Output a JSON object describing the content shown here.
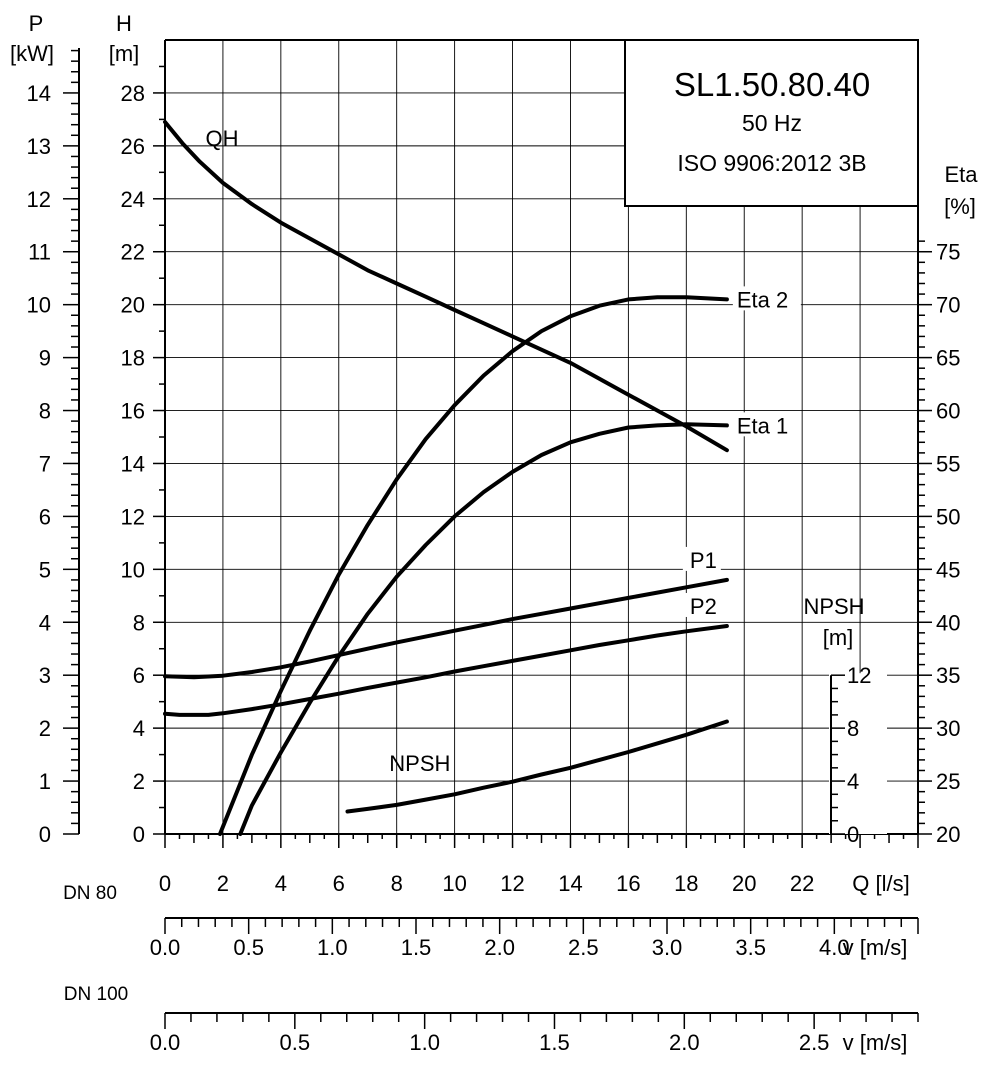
{
  "chart_data": {
    "type": "line",
    "title": "SL1.50.80.40",
    "subtitle_lines": [
      "50 Hz",
      "ISO 9906:2012 3B"
    ],
    "x_axis": {
      "label": "Q [l/s]",
      "range": [
        0,
        26
      ],
      "ticks": [
        "0",
        "2",
        "4",
        "6",
        "8",
        "10",
        "12",
        "14",
        "16",
        "18",
        "20",
        "22"
      ]
    },
    "h_axis": {
      "label_top": "H",
      "label_unit": "[m]",
      "range": [
        0,
        30
      ],
      "ticks": [
        "0",
        "2",
        "4",
        "6",
        "8",
        "10",
        "12",
        "14",
        "16",
        "18",
        "20",
        "22",
        "24",
        "26",
        "28"
      ]
    },
    "p_axis": {
      "label_top": "P",
      "label_unit": "[kW]",
      "range": [
        0,
        15
      ],
      "ticks": [
        "0",
        "1",
        "2",
        "3",
        "4",
        "5",
        "6",
        "7",
        "8",
        "9",
        "10",
        "11",
        "12",
        "13",
        "14"
      ]
    },
    "eta_axis": {
      "label_top": "Eta",
      "label_unit": "[%]",
      "range": [
        20,
        75
      ],
      "ticks": [
        "20",
        "25",
        "30",
        "35",
        "40",
        "45",
        "50",
        "55",
        "60",
        "65",
        "70",
        "75"
      ]
    },
    "npsh_axis": {
      "label_top": "NPSH",
      "label_unit": "[m]",
      "range": [
        0,
        12
      ],
      "ticks": [
        "0",
        "4",
        "8",
        "12"
      ]
    },
    "velocity_scales": [
      {
        "name": "DN 80",
        "label": "v [m/s]",
        "ticks": [
          "0.0",
          "0.5",
          "1.0",
          "1.5",
          "2.0",
          "2.5",
          "3.0",
          "3.5",
          "4.0"
        ],
        "tick_step": 0.5,
        "minor_per_major": 5,
        "v_max": 4.5
      },
      {
        "name": "DN 100",
        "label": "v [m/s]",
        "ticks": [
          "0.0",
          "0.5",
          "1.0",
          "1.5",
          "2.0",
          "2.5"
        ],
        "tick_step": 0.5,
        "minor_per_major": 5,
        "v_max": 2.9
      }
    ],
    "series": [
      {
        "name": "QH",
        "axis": "h",
        "x": [
          0,
          0.6,
          1.2,
          2,
          3,
          4,
          5,
          6,
          7,
          8,
          9,
          10,
          11,
          12,
          13,
          14,
          15,
          16,
          17,
          18,
          19.4
        ],
        "y": [
          26.9,
          26.1,
          25.4,
          24.6,
          23.8,
          23.1,
          22.5,
          21.9,
          21.3,
          20.8,
          20.3,
          19.8,
          19.3,
          18.8,
          18.3,
          17.8,
          17.2,
          16.6,
          16.0,
          15.4,
          14.5
        ]
      },
      {
        "name": "Eta 2",
        "axis": "eta",
        "x": [
          1.9,
          3,
          4,
          5,
          6,
          7,
          8,
          9,
          10,
          11,
          12,
          13,
          14,
          15,
          16,
          17,
          18,
          19.4
        ],
        "y": [
          20,
          27.5,
          33.5,
          39.2,
          44.5,
          49.2,
          53.5,
          57.3,
          60.5,
          63.3,
          65.6,
          67.5,
          68.9,
          69.9,
          70.5,
          70.7,
          70.7,
          70.5
        ]
      },
      {
        "name": "Eta 1",
        "axis": "eta",
        "x": [
          2.6,
          3,
          4,
          5,
          6,
          7,
          8,
          9,
          10,
          11,
          12,
          13,
          14,
          15,
          16,
          17,
          18,
          19.4
        ],
        "y": [
          20,
          22.7,
          27.7,
          32.4,
          36.8,
          40.8,
          44.3,
          47.3,
          50,
          52.3,
          54.2,
          55.8,
          57.0,
          57.8,
          58.4,
          58.6,
          58.7,
          58.6
        ]
      },
      {
        "name": "P1",
        "axis": "p",
        "x": [
          0,
          1,
          2,
          3,
          4,
          5,
          6,
          7,
          8,
          9,
          10,
          11,
          12,
          13,
          14,
          15,
          16,
          17,
          18,
          19.4
        ],
        "y": [
          2.98,
          2.96,
          2.99,
          3.06,
          3.15,
          3.26,
          3.38,
          3.5,
          3.62,
          3.73,
          3.84,
          3.95,
          4.06,
          4.16,
          4.26,
          4.36,
          4.46,
          4.56,
          4.66,
          4.8
        ]
      },
      {
        "name": "P2",
        "axis": "p",
        "x": [
          0,
          0.5,
          1.5,
          2,
          3,
          4,
          5,
          6,
          7,
          8,
          9,
          10,
          11,
          12,
          13,
          14,
          15,
          16,
          17,
          18,
          19.4
        ],
        "y": [
          2.27,
          2.25,
          2.25,
          2.28,
          2.36,
          2.45,
          2.55,
          2.65,
          2.76,
          2.86,
          2.96,
          3.07,
          3.17,
          3.27,
          3.37,
          3.47,
          3.57,
          3.66,
          3.75,
          3.83,
          3.93
        ]
      },
      {
        "name": "NPSH",
        "axis": "npsh",
        "x": [
          6.3,
          7,
          8,
          9,
          10,
          11,
          12,
          13,
          14,
          15,
          16,
          17,
          18,
          19.4
        ],
        "y": [
          1.7,
          1.9,
          2.2,
          2.6,
          3.0,
          3.5,
          3.95,
          4.5,
          5.0,
          5.6,
          6.2,
          6.85,
          7.5,
          8.5
        ]
      }
    ]
  }
}
